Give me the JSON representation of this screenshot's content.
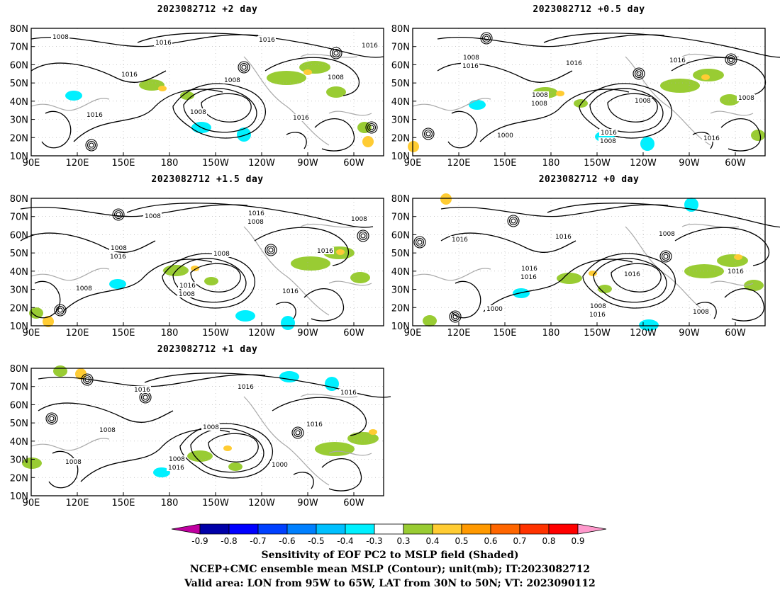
{
  "panels": [
    {
      "id": "p-2day",
      "title": "2023082712 +2 day"
    },
    {
      "id": "p-0.5day",
      "title": "2023082712 +0.5 day"
    },
    {
      "id": "p-1.5day",
      "title": "2023082712 +1.5 day"
    },
    {
      "id": "p-0day",
      "title": "2023082712 +0 day"
    },
    {
      "id": "p-1day",
      "title": "2023082712 +1 day"
    }
  ],
  "axes": {
    "lat_ticks": [
      "80N",
      "70N",
      "60N",
      "50N",
      "40N",
      "30N",
      "20N",
      "10N"
    ],
    "lon_ticks": [
      "90E",
      "120E",
      "150E",
      "180",
      "150W",
      "120W",
      "90W",
      "60W"
    ]
  },
  "contour_labels": {
    "p-2day": [
      "1008",
      "1016",
      "1008",
      "1016",
      "1008",
      "1016",
      "1016",
      "1008",
      "1016",
      "1016"
    ],
    "p-0.5day": [
      "1008",
      "1008",
      "1016",
      "1016",
      "1008",
      "1000",
      "1016",
      "1008",
      "1016",
      "1016",
      "1008",
      "1008"
    ],
    "p-1.5day": [
      "1008",
      "1016",
      "1016",
      "1016",
      "1008",
      "1008",
      "1008",
      "1016",
      "1008",
      "1016",
      "1008",
      "1008"
    ],
    "p-0day": [
      "1016",
      "1008",
      "1008",
      "1016",
      "1000",
      "1016",
      "1016",
      "1008",
      "1016",
      "1016",
      "1016"
    ],
    "p-1day": [
      "1008",
      "1016",
      "1016",
      "1008",
      "1016",
      "1008",
      "1000",
      "1016",
      "1008",
      "1016"
    ]
  },
  "colorbar": {
    "labels": [
      "-0.9",
      "-0.8",
      "-0.7",
      "-0.6",
      "-0.5",
      "-0.4",
      "-0.3",
      "0.3",
      "0.4",
      "0.5",
      "0.6",
      "0.7",
      "0.8",
      "0.9"
    ],
    "colors": [
      "#c000a0",
      "#0000a8",
      "#0000ff",
      "#0040ff",
      "#0080ff",
      "#00c0ff",
      "#00f0ff",
      "#ffffff",
      "#99cc33",
      "#ffcc33",
      "#ff9900",
      "#ff6600",
      "#ff3300",
      "#ff0000",
      "#ff99cc"
    ]
  },
  "captions": {
    "line1": "Sensitivity of EOF PC2 to MSLP field (Shaded)",
    "line2": "NCEP+CMC ensemble mean MSLP (Contour); unit(mb); IT:2023082712",
    "line3": "Valid area: LON from 95W to 65W, LAT from 30N to 50N; VT: 2023090112"
  }
}
